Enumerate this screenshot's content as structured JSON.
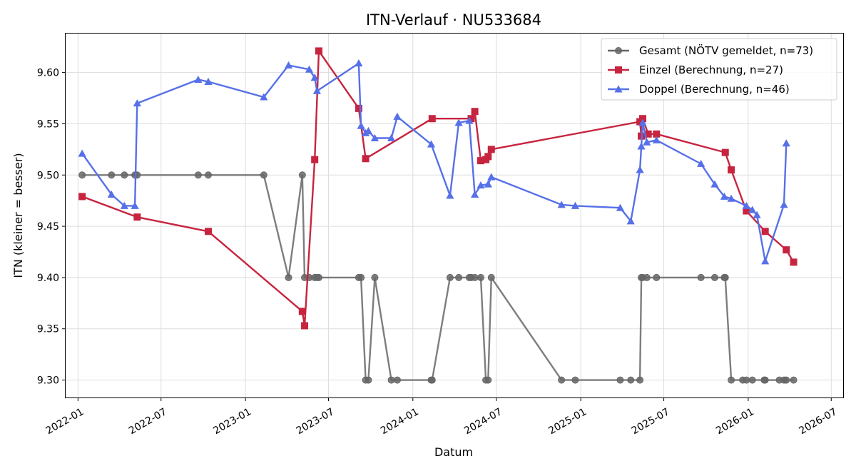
{
  "chart_data": {
    "type": "line",
    "title": "ITN-Verlauf · NU533684",
    "xlabel": "Datum",
    "ylabel": "ITN  (kleiner = besser)",
    "xlim": [
      "2021-12-05",
      "2026-07-27"
    ],
    "ylim": [
      9.283,
      9.638
    ],
    "x_ticks": [
      "2022-01-01",
      "2022-07-01",
      "2023-01-01",
      "2023-07-01",
      "2024-01-01",
      "2024-07-01",
      "2025-01-01",
      "2025-07-01",
      "2026-01-01",
      "2026-07-01"
    ],
    "x_tick_labels": [
      "2022-01",
      "2022-07",
      "2023-01",
      "2023-07",
      "2024-01",
      "2024-07",
      "2025-01",
      "2025-07",
      "2026-01",
      "2026-07"
    ],
    "y_ticks": [
      9.3,
      9.35,
      9.4,
      9.45,
      9.5,
      9.55,
      9.6
    ],
    "y_tick_labels": [
      "9.30",
      "9.35",
      "9.40",
      "9.45",
      "9.50",
      "9.55",
      "9.60"
    ],
    "grid": true,
    "legend_position": "top-right",
    "series": [
      {
        "name": "Gesamt (NÖTV gemeldet, n=73)",
        "color": "#666666",
        "marker": "circle",
        "points": [
          [
            "2022-01-10",
            9.5
          ],
          [
            "2022-03-15",
            9.5
          ],
          [
            "2022-04-12",
            9.5
          ],
          [
            "2022-05-05",
            9.5
          ],
          [
            "2022-05-10",
            9.5
          ],
          [
            "2022-09-20",
            9.5
          ],
          [
            "2022-10-12",
            9.5
          ],
          [
            "2023-02-10",
            9.5
          ],
          [
            "2023-04-05",
            9.4
          ],
          [
            "2023-05-05",
            9.5
          ],
          [
            "2023-05-10",
            9.4
          ],
          [
            "2023-05-20",
            9.4
          ],
          [
            "2023-06-01",
            9.4
          ],
          [
            "2023-06-06",
            9.4
          ],
          [
            "2023-06-10",
            9.4
          ],
          [
            "2023-09-05",
            9.4
          ],
          [
            "2023-09-10",
            9.4
          ],
          [
            "2023-09-20",
            9.3
          ],
          [
            "2023-09-26",
            9.3
          ],
          [
            "2023-10-10",
            9.4
          ],
          [
            "2023-11-15",
            9.3
          ],
          [
            "2023-11-28",
            9.3
          ],
          [
            "2024-02-10",
            9.3
          ],
          [
            "2024-02-12",
            9.3
          ],
          [
            "2024-03-22",
            9.4
          ],
          [
            "2024-04-10",
            9.4
          ],
          [
            "2024-05-03",
            9.4
          ],
          [
            "2024-05-07",
            9.4
          ],
          [
            "2024-05-15",
            9.4
          ],
          [
            "2024-05-28",
            9.4
          ],
          [
            "2024-06-08",
            9.3
          ],
          [
            "2024-06-13",
            9.3
          ],
          [
            "2024-06-20",
            9.4
          ],
          [
            "2024-11-20",
            9.3
          ],
          [
            "2024-12-20",
            9.3
          ],
          [
            "2025-03-28",
            9.3
          ],
          [
            "2025-04-20",
            9.3
          ],
          [
            "2025-05-10",
            9.3
          ],
          [
            "2025-05-13",
            9.4
          ],
          [
            "2025-05-16",
            9.4
          ],
          [
            "2025-05-25",
            9.4
          ],
          [
            "2025-06-15",
            9.4
          ],
          [
            "2025-09-20",
            9.4
          ],
          [
            "2025-10-20",
            9.4
          ],
          [
            "2025-11-10",
            9.4
          ],
          [
            "2025-11-12",
            9.4
          ],
          [
            "2025-11-25",
            9.3
          ],
          [
            "2025-12-20",
            9.3
          ],
          [
            "2025-12-28",
            9.3
          ],
          [
            "2026-01-10",
            9.3
          ],
          [
            "2026-02-05",
            9.3
          ],
          [
            "2026-02-07",
            9.3
          ],
          [
            "2026-03-10",
            9.3
          ],
          [
            "2026-03-20",
            9.3
          ],
          [
            "2026-03-25",
            9.3
          ],
          [
            "2026-04-10",
            9.3
          ]
        ]
      },
      {
        "name": "Einzel (Berechnung, n=27)",
        "color": "#c7243f",
        "marker": "square",
        "points": [
          [
            "2022-01-10",
            9.479
          ],
          [
            "2022-05-10",
            9.459
          ],
          [
            "2022-10-12",
            9.445
          ],
          [
            "2023-05-05",
            9.367
          ],
          [
            "2023-05-10",
            9.353
          ],
          [
            "2023-06-01",
            9.515
          ],
          [
            "2023-06-10",
            9.621
          ],
          [
            "2023-09-05",
            9.565
          ],
          [
            "2023-09-20",
            9.516
          ],
          [
            "2024-02-12",
            9.555
          ],
          [
            "2024-05-07",
            9.555
          ],
          [
            "2024-05-15",
            9.562
          ],
          [
            "2024-05-28",
            9.514
          ],
          [
            "2024-06-08",
            9.515
          ],
          [
            "2024-06-13",
            9.518
          ],
          [
            "2024-06-20",
            9.525
          ],
          [
            "2025-05-10",
            9.552
          ],
          [
            "2025-05-13",
            9.538
          ],
          [
            "2025-05-16",
            9.555
          ],
          [
            "2025-05-28",
            9.54
          ],
          [
            "2025-06-15",
            9.54
          ],
          [
            "2025-11-12",
            9.522
          ],
          [
            "2025-11-25",
            9.505
          ],
          [
            "2025-12-28",
            9.465
          ],
          [
            "2026-02-07",
            9.445
          ],
          [
            "2026-03-25",
            9.427
          ],
          [
            "2026-04-10",
            9.415
          ]
        ]
      },
      {
        "name": "Doppel (Berechnung, n=46)",
        "color": "#5670e8",
        "marker": "triangle",
        "points": [
          [
            "2022-01-10",
            9.521
          ],
          [
            "2022-03-15",
            9.481
          ],
          [
            "2022-04-12",
            9.47
          ],
          [
            "2022-05-05",
            9.47
          ],
          [
            "2022-05-10",
            9.57
          ],
          [
            "2022-09-20",
            9.593
          ],
          [
            "2022-10-12",
            9.591
          ],
          [
            "2023-02-10",
            9.576
          ],
          [
            "2023-04-05",
            9.607
          ],
          [
            "2023-05-20",
            9.603
          ],
          [
            "2023-06-01",
            9.595
          ],
          [
            "2023-06-06",
            9.582
          ],
          [
            "2023-09-05",
            9.609
          ],
          [
            "2023-09-10",
            9.548
          ],
          [
            "2023-09-20",
            9.541
          ],
          [
            "2023-09-26",
            9.543
          ],
          [
            "2023-10-10",
            9.536
          ],
          [
            "2023-11-15",
            9.536
          ],
          [
            "2023-11-28",
            9.557
          ],
          [
            "2024-02-10",
            9.53
          ],
          [
            "2024-03-22",
            9.48
          ],
          [
            "2024-04-10",
            9.551
          ],
          [
            "2024-05-03",
            9.553
          ],
          [
            "2024-05-15",
            9.481
          ],
          [
            "2024-05-28",
            9.49
          ],
          [
            "2024-06-13",
            9.491
          ],
          [
            "2024-06-20",
            9.498
          ],
          [
            "2024-11-20",
            9.471
          ],
          [
            "2024-12-20",
            9.47
          ],
          [
            "2025-03-28",
            9.468
          ],
          [
            "2025-04-20",
            9.455
          ],
          [
            "2025-05-10",
            9.505
          ],
          [
            "2025-05-13",
            9.528
          ],
          [
            "2025-05-16",
            9.551
          ],
          [
            "2025-05-25",
            9.532
          ],
          [
            "2025-06-15",
            9.534
          ],
          [
            "2025-09-20",
            9.511
          ],
          [
            "2025-10-20",
            9.491
          ],
          [
            "2025-11-10",
            9.479
          ],
          [
            "2025-11-25",
            9.477
          ],
          [
            "2025-12-28",
            9.47
          ],
          [
            "2026-01-10",
            9.466
          ],
          [
            "2026-01-20",
            9.461
          ],
          [
            "2026-02-07",
            9.416
          ],
          [
            "2026-03-20",
            9.471
          ],
          [
            "2026-03-25",
            9.531
          ]
        ]
      }
    ]
  }
}
